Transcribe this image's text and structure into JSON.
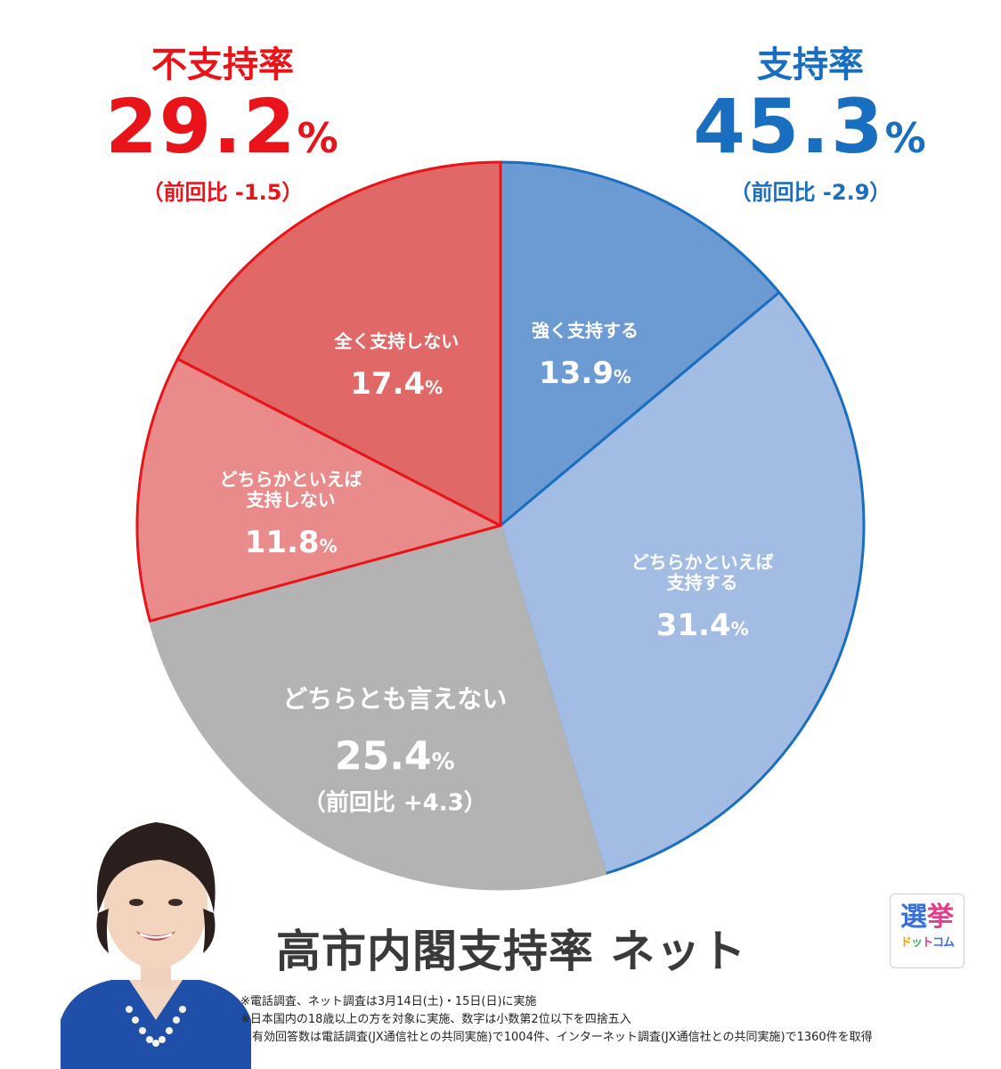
{
  "approve": {
    "label": "支持率",
    "value": "45.3",
    "unit": "%",
    "change": "（前回比 -2.9）"
  },
  "disapprove": {
    "label": "不支持率",
    "value": "29.2",
    "unit": "%",
    "change": "（前回比 -1.5）"
  },
  "chart_data": {
    "type": "pie",
    "title": "高市内閣支持率 ネット",
    "slices": [
      {
        "label": "強く支持する",
        "value": 13.9,
        "color": "#6b9bd2",
        "stroke": "#1a6ec0"
      },
      {
        "label": "どちらかといえば\n支持する",
        "value": 31.4,
        "color": "#a3bce3",
        "stroke": "#1a6ec0"
      },
      {
        "label": "どちらとも言えない",
        "value": 25.4,
        "color": "#b3b3b3",
        "stroke": "#b3b3b3",
        "note": "（前回比 +4.3）"
      },
      {
        "label": "どちらかといえば\n支持しない",
        "value": 11.8,
        "color": "#e98b8b",
        "stroke": "#e8141a"
      },
      {
        "label": "全く支持しない",
        "value": 17.4,
        "color": "#e06866",
        "stroke": "#e8141a"
      }
    ],
    "unit": "%"
  },
  "title": "高市内閣支持率 ネット",
  "notes": [
    "※電話調査、ネット調査は3月14日(土)・15日(日)に実施",
    "※日本国内の18歳以上の方を対象に実施、数字は小数第2位以下を四捨五入",
    "　有効回答数は電話調査(JX通信社との共同実施)で1004件、インターネット調査(JX通信社との共同実施)で1360件を取得"
  ],
  "logo": {
    "line1a": "選",
    "line1b": "挙",
    "line2": [
      "ド",
      "ッ",
      "ト",
      "コム"
    ]
  },
  "colors": {
    "approve": "#1a6ec0",
    "disapprove": "#e8141a",
    "neutral": "#b3b3b3"
  }
}
